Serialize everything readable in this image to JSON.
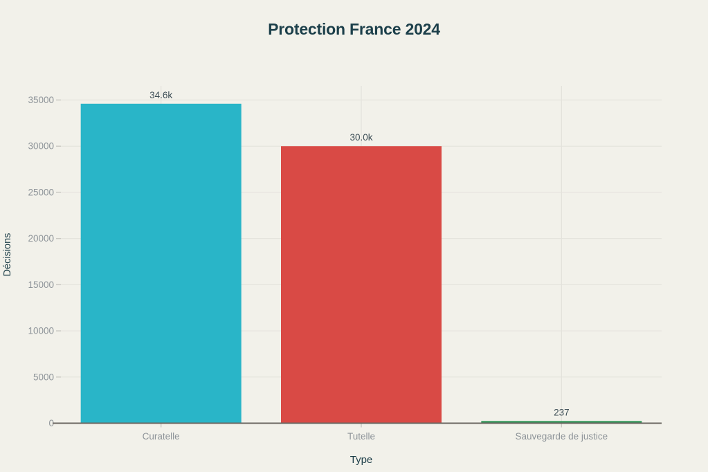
{
  "chart_data": {
    "type": "bar",
    "title": "Protection France 2024",
    "xlabel": "Type",
    "ylabel": "Décisions",
    "categories": [
      "Curatelle",
      "Tutelle",
      "Sauvegarde de justice"
    ],
    "values": [
      34600,
      30000,
      237
    ],
    "value_labels": [
      "34.6k",
      "30.0k",
      "237"
    ],
    "bar_colors": [
      "#29b5c8",
      "#d94a45",
      "#2e9556"
    ],
    "ylim": [
      0,
      35000
    ],
    "yticks": [
      0,
      5000,
      10000,
      15000,
      20000,
      25000,
      30000,
      35000
    ],
    "grid": "on",
    "legend": "none",
    "background_color": "#f2f1ea",
    "title_color": "#1c3f4a",
    "tick_label_color": "#8e9499",
    "value_label_color": "#3e4f57"
  }
}
